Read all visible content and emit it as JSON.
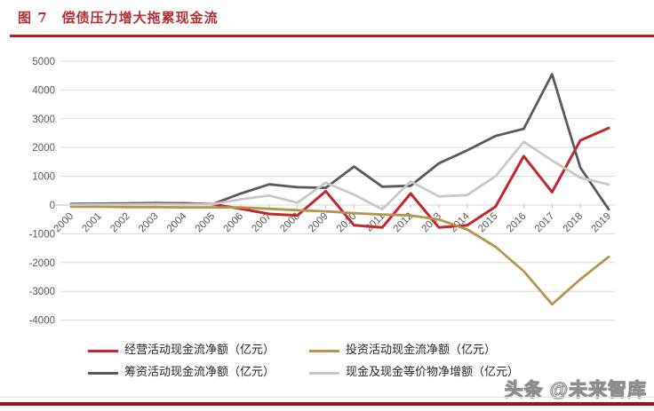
{
  "figure": {
    "label": "图 7",
    "title": "偿债压力增大拖累现金流"
  },
  "watermark": "头条 @未来智库",
  "colors": {
    "title_red": "#b03030",
    "rule_red": "#c01616",
    "bottom_rule_red": "#a81111",
    "grid": "#dadada",
    "axis_tick": "#bfbfbf",
    "axis_text": "#595959",
    "legend_text": "#262626"
  },
  "chart_data": {
    "type": "line",
    "categories": [
      "2000",
      "2001",
      "2002",
      "2003",
      "2004",
      "2005",
      "2006",
      "2007",
      "2008",
      "2009",
      "2010",
      "2011",
      "2012",
      "2013",
      "2014",
      "2015",
      "2016",
      "2017",
      "2018",
      "2019"
    ],
    "series": [
      {
        "name": "经营活动现金流净额（亿元）",
        "color": "#c1272d",
        "values": [
          30,
          30,
          40,
          50,
          60,
          30,
          -130,
          -310,
          -360,
          480,
          -700,
          -780,
          400,
          -780,
          -700,
          -60,
          1700,
          450,
          2250,
          2680
        ]
      },
      {
        "name": "投资活动现金流净额（亿元）",
        "color": "#b6944c",
        "values": [
          -60,
          -60,
          -70,
          -70,
          -80,
          -80,
          -80,
          -130,
          -180,
          -220,
          -280,
          -330,
          -360,
          -500,
          -850,
          -1450,
          -2300,
          -3450,
          -2580,
          -1800
        ]
      },
      {
        "name": "筹资活动现金流净额（亿元）",
        "color": "#595959",
        "values": [
          40,
          50,
          60,
          70,
          60,
          30,
          400,
          720,
          620,
          600,
          1340,
          640,
          670,
          1450,
          1900,
          2400,
          2650,
          4550,
          1300,
          -150
        ]
      },
      {
        "name": "现金及现金等价物净增额（亿元）",
        "color": "#c8c8c8",
        "values": [
          10,
          20,
          20,
          30,
          20,
          30,
          200,
          330,
          80,
          780,
          360,
          -150,
          825,
          300,
          350,
          1000,
          2200,
          1550,
          950,
          720
        ]
      }
    ],
    "ylim": [
      -4000,
      5000
    ],
    "ytick_step": 1000,
    "xlabel": "",
    "ylabel": "",
    "grid": true,
    "legend_position": "bottom"
  }
}
